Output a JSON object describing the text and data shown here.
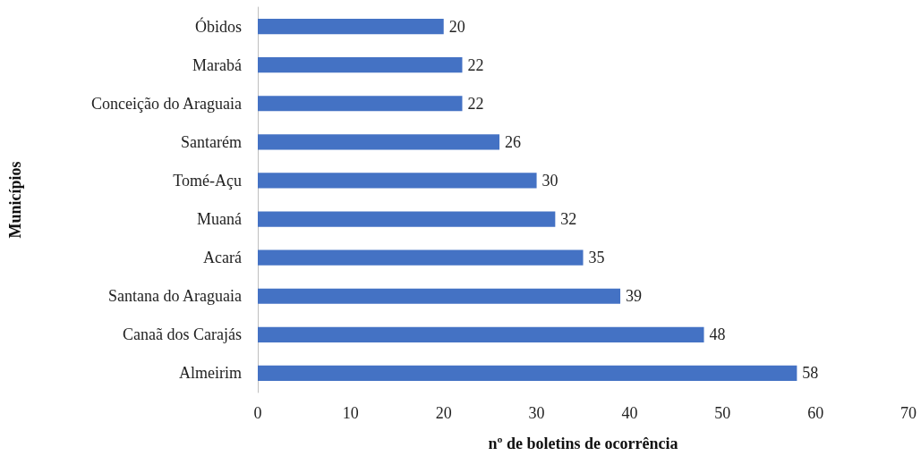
{
  "chart_data": {
    "type": "bar",
    "orientation": "horizontal",
    "xlabel": "nº de boletins de ocorrência",
    "ylabel": "Municípios",
    "categories": [
      "Óbidos",
      "Marabá",
      "Conceição do Araguaia",
      "Santarém",
      "Tomé-Açu",
      "Muaná",
      "Acará",
      "Santana do Araguaia",
      "Canaã dos Carajás",
      "Almeirim"
    ],
    "values": [
      20,
      22,
      22,
      26,
      30,
      32,
      35,
      39,
      48,
      58
    ],
    "color": "#4472c4",
    "data_labels": true,
    "xlim": [
      0,
      70
    ],
    "xticks": [
      0,
      10,
      20,
      30,
      40,
      50,
      60,
      70
    ],
    "grid": false
  }
}
